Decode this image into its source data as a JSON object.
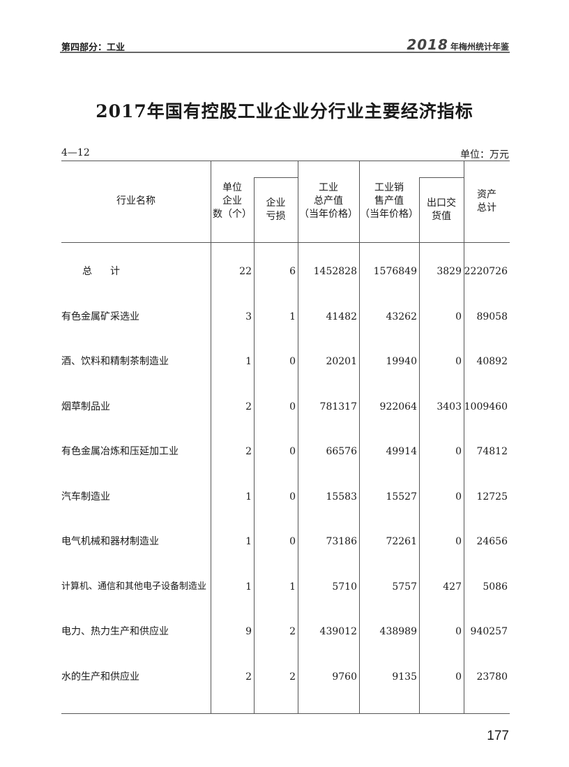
{
  "header": {
    "section": "第四部分：工业",
    "yearbook_year": "2018",
    "yearbook_name": "年梅州统计年鉴"
  },
  "title": "2017年国有控股工业企业分行业主要经济指标",
  "table_number": "4—12",
  "unit": "单位：万元",
  "columns": {
    "name": "行业名称",
    "units": "单位\n企业\n数（个）",
    "loss": "企业\n亏损",
    "output": "工业\n总产值\n（当年价格）",
    "sales": "工业销\n售产值\n（当年价格）",
    "export": "出口交\n货值",
    "assets": "资产\n总计"
  },
  "rows": [
    {
      "name": "总　计",
      "units": "22",
      "loss": "6",
      "output": "1452828",
      "sales": "1576849",
      "export": "3829",
      "assets": "2220726"
    },
    {
      "name": "有色金属矿采选业",
      "units": "3",
      "loss": "1",
      "output": "41482",
      "sales": "43262",
      "export": "0",
      "assets": "89058"
    },
    {
      "name": "酒、饮料和精制茶制造业",
      "units": "1",
      "loss": "0",
      "output": "20201",
      "sales": "19940",
      "export": "0",
      "assets": "40892"
    },
    {
      "name": "烟草制品业",
      "units": "2",
      "loss": "0",
      "output": "781317",
      "sales": "922064",
      "export": "3403",
      "assets": "1009460"
    },
    {
      "name": "有色金属冶炼和压延加工业",
      "units": "2",
      "loss": "0",
      "output": "66576",
      "sales": "49914",
      "export": "0",
      "assets": "74812"
    },
    {
      "name": "汽车制造业",
      "units": "1",
      "loss": "0",
      "output": "15583",
      "sales": "15527",
      "export": "0",
      "assets": "12725"
    },
    {
      "name": "电气机械和器材制造业",
      "units": "1",
      "loss": "0",
      "output": "73186",
      "sales": "72261",
      "export": "0",
      "assets": "24656"
    },
    {
      "name": "计算机、通信和其他电子设备制造业",
      "units": "1",
      "loss": "1",
      "output": "5710",
      "sales": "5757",
      "export": "427",
      "assets": "5086"
    },
    {
      "name": "电力、热力生产和供应业",
      "units": "9",
      "loss": "2",
      "output": "439012",
      "sales": "438989",
      "export": "0",
      "assets": "940257"
    },
    {
      "name": "水的生产和供应业",
      "units": "2",
      "loss": "2",
      "output": "9760",
      "sales": "9135",
      "export": "0",
      "assets": "23780"
    }
  ],
  "page_number": "177"
}
